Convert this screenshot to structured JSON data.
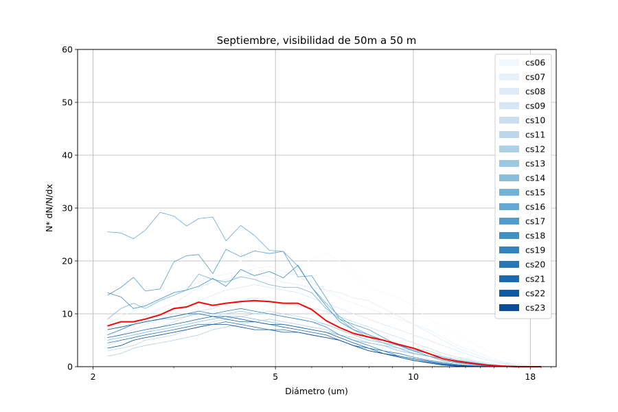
{
  "chart_data": {
    "type": "line",
    "title": "Septiembre, visibilidad de 50m a 50 m",
    "xlabel": "Diámetro (um)",
    "ylabel": "N* dN/N/dx",
    "x_scale": "log",
    "xlim": [
      1.85,
      20.5
    ],
    "ylim": [
      0,
      60
    ],
    "grid": true,
    "legend_position": "top-right",
    "xticks": [
      2,
      5,
      10,
      18
    ],
    "xtick_labels": [
      "2",
      "5",
      "10",
      "18"
    ],
    "yticks": [
      0,
      10,
      20,
      30,
      40,
      50,
      60
    ],
    "ytick_labels": [
      "0",
      "10",
      "20",
      "30",
      "40",
      "50",
      "60"
    ],
    "x": [
      2.15,
      2.3,
      2.45,
      2.6,
      2.8,
      3.0,
      3.2,
      3.4,
      3.65,
      3.9,
      4.2,
      4.5,
      4.85,
      5.2,
      5.6,
      6.0,
      6.45,
      6.9,
      7.4,
      8.0,
      8.6,
      9.3,
      10.0,
      10.8,
      11.6,
      12.5,
      13.5,
      14.5,
      15.6,
      16.8,
      18.0,
      19.0
    ],
    "series": [
      {
        "name": "cs06",
        "color": "#f2f8fd",
        "values": [
          9.0,
          10.0,
          11.0,
          12.0,
          13.5,
          14.5,
          16.0,
          17.0,
          18.5,
          19.5,
          20.0,
          19.0,
          18.0,
          17.5,
          18.5,
          20.5,
          21.5,
          20.0,
          17.5,
          15.0,
          14.0,
          13.0,
          11.5,
          9.0,
          7.5,
          6.0,
          4.5,
          3.0,
          1.8,
          0.8,
          0.2,
          0.0
        ]
      },
      {
        "name": "cs07",
        "color": "#e8f1fa",
        "values": [
          8.0,
          9.5,
          10.5,
          11.5,
          12.5,
          14.0,
          15.0,
          16.0,
          17.0,
          17.5,
          18.0,
          18.5,
          19.0,
          18.0,
          17.0,
          16.0,
          14.5,
          13.0,
          12.0,
          11.0,
          10.0,
          9.0,
          8.0,
          7.0,
          5.5,
          4.0,
          3.0,
          2.0,
          1.0,
          0.5,
          0.1,
          0.0
        ]
      },
      {
        "name": "cs08",
        "color": "#dfebf7",
        "values": [
          6.0,
          7.0,
          8.5,
          9.5,
          11.0,
          12.0,
          13.5,
          15.0,
          16.0,
          16.5,
          17.0,
          17.5,
          17.0,
          16.0,
          15.5,
          15.0,
          14.5,
          14.0,
          13.0,
          12.5,
          11.0,
          9.5,
          8.0,
          6.5,
          5.0,
          3.5,
          2.5,
          1.5,
          0.8,
          0.3,
          0.1,
          0.0
        ]
      },
      {
        "name": "cs09",
        "color": "#d6e6f4",
        "values": [
          5.0,
          6.0,
          7.0,
          8.0,
          9.0,
          10.0,
          11.5,
          12.5,
          13.5,
          14.5,
          15.0,
          15.5,
          15.0,
          14.5,
          14.0,
          13.0,
          12.0,
          11.0,
          10.0,
          9.0,
          8.0,
          7.0,
          6.0,
          5.0,
          4.0,
          3.0,
          2.0,
          1.2,
          0.6,
          0.2,
          0.0,
          0.0
        ]
      },
      {
        "name": "cs10",
        "color": "#cadef0",
        "values": [
          4.0,
          5.0,
          5.5,
          6.5,
          7.5,
          8.5,
          9.5,
          10.5,
          11.0,
          12.0,
          12.5,
          13.0,
          12.5,
          12.0,
          11.5,
          11.0,
          10.5,
          9.5,
          8.5,
          7.5,
          6.5,
          5.5,
          4.5,
          3.5,
          2.5,
          1.8,
          1.2,
          0.7,
          0.3,
          0.1,
          0.0,
          0.0
        ]
      },
      {
        "name": "cs11",
        "color": "#bcd7eb",
        "values": [
          3.0,
          3.5,
          4.0,
          5.0,
          5.5,
          6.0,
          7.0,
          7.5,
          8.5,
          9.0,
          9.5,
          10.0,
          10.5,
          10.0,
          9.5,
          9.0,
          8.0,
          7.0,
          6.0,
          5.0,
          4.5,
          4.0,
          3.5,
          3.0,
          2.0,
          1.5,
          1.0,
          0.5,
          0.2,
          0.1,
          0.0,
          0.0
        ]
      },
      {
        "name": "cs12",
        "color": "#abd0e6",
        "values": [
          2.0,
          2.5,
          3.5,
          4.0,
          4.5,
          5.0,
          5.5,
          6.0,
          7.0,
          7.5,
          8.0,
          8.5,
          9.0,
          8.5,
          8.0,
          7.5,
          7.0,
          6.0,
          5.5,
          4.5,
          4.0,
          3.5,
          3.0,
          2.0,
          1.5,
          1.0,
          0.6,
          0.3,
          0.1,
          0.0,
          0.0,
          0.0
        ]
      },
      {
        "name": "cs13",
        "color": "#9ac8e0",
        "values": [
          7.0,
          7.5,
          8.0,
          8.5,
          9.0,
          9.0,
          9.5,
          10.0,
          10.0,
          10.0,
          10.5,
          10.0,
          10.0,
          9.5,
          9.0,
          8.5,
          8.0,
          7.0,
          6.0,
          5.0,
          4.5,
          4.0,
          3.0,
          2.5,
          1.8,
          1.2,
          0.8,
          0.4,
          0.2,
          0.0,
          0.0,
          0.0
        ]
      },
      {
        "name": "cs14",
        "color": "#88bedc",
        "values": [
          5.0,
          5.5,
          6.0,
          6.5,
          7.0,
          7.5,
          8.0,
          8.5,
          9.0,
          9.5,
          9.5,
          9.0,
          8.5,
          8.0,
          7.5,
          7.0,
          6.5,
          6.0,
          5.0,
          4.5,
          4.0,
          3.0,
          2.5,
          2.0,
          1.5,
          1.0,
          0.5,
          0.2,
          0.1,
          0.0,
          0.0,
          0.0
        ]
      },
      {
        "name": "cs15",
        "color": "#74b3d8",
        "values": [
          9.0,
          11.0,
          12.0,
          11.0,
          12.5,
          13.5,
          14.5,
          17.5,
          16.5,
          16.0,
          17.0,
          16.5,
          15.5,
          15.0,
          15.0,
          14.0,
          11.0,
          9.0,
          7.0,
          5.5,
          4.5,
          3.5,
          2.5,
          2.0,
          1.5,
          1.0,
          0.5,
          0.3,
          0.1,
          0.0,
          0.0,
          0.0
        ]
      },
      {
        "name": "cs16",
        "color": "#62a8d3",
        "values": [
          25.5,
          25.3,
          24.2,
          25.8,
          29.2,
          28.5,
          26.6,
          28.0,
          28.3,
          23.8,
          26.7,
          24.8,
          22.0,
          21.8,
          19.0,
          15.0,
          12.0,
          9.5,
          7.5,
          6.0,
          5.0,
          4.0,
          3.2,
          2.5,
          1.8,
          1.2,
          0.8,
          0.4,
          0.2,
          0.1,
          0.0,
          0.0
        ]
      },
      {
        "name": "cs17",
        "color": "#519ccc",
        "values": [
          13.5,
          15.0,
          16.9,
          14.3,
          14.7,
          19.8,
          21.0,
          21.2,
          17.6,
          22.2,
          20.8,
          21.9,
          21.4,
          21.8,
          17.0,
          17.2,
          13.0,
          9.0,
          8.0,
          7.0,
          5.5,
          4.0,
          3.5,
          2.5,
          1.5,
          0.8,
          0.4,
          0.2,
          0.1,
          0.0,
          0.0,
          0.0
        ]
      },
      {
        "name": "cs18",
        "color": "#4190c5",
        "values": [
          14.0,
          13.2,
          11.0,
          11.5,
          12.8,
          14.0,
          14.5,
          15.2,
          16.7,
          15.2,
          18.4,
          17.2,
          18.0,
          16.8,
          19.2,
          15.0,
          11.5,
          8.5,
          7.0,
          6.0,
          5.0,
          4.0,
          3.0,
          2.0,
          1.2,
          0.7,
          0.4,
          0.2,
          0.1,
          0.0,
          0.0,
          0.0
        ]
      },
      {
        "name": "cs19",
        "color": "#3383be",
        "values": [
          6.0,
          7.0,
          8.0,
          8.5,
          9.0,
          9.5,
          10.0,
          10.5,
          10.0,
          10.5,
          11.0,
          10.5,
          10.0,
          9.5,
          9.0,
          8.5,
          7.5,
          6.0,
          5.0,
          4.0,
          3.0,
          2.5,
          1.8,
          1.2,
          0.8,
          0.4,
          0.2,
          0.1,
          0.0,
          0.0,
          0.0,
          0.0
        ]
      },
      {
        "name": "cs20",
        "color": "#2676b8",
        "values": [
          4.5,
          5.0,
          5.5,
          6.0,
          6.5,
          7.0,
          7.5,
          8.0,
          8.0,
          8.5,
          8.0,
          7.5,
          7.0,
          7.0,
          6.5,
          6.0,
          5.5,
          5.0,
          4.0,
          3.5,
          3.0,
          2.0,
          1.5,
          1.0,
          0.6,
          0.3,
          0.1,
          0.0,
          0.0,
          0.0,
          0.0,
          0.0
        ]
      },
      {
        "name": "cs21",
        "color": "#1b69af",
        "values": [
          5.5,
          6.0,
          6.5,
          7.0,
          7.5,
          8.0,
          8.5,
          9.0,
          9.5,
          9.0,
          8.5,
          8.5,
          8.0,
          7.5,
          7.0,
          6.5,
          6.0,
          5.0,
          4.0,
          3.0,
          2.5,
          1.8,
          1.2,
          0.8,
          0.4,
          0.2,
          0.1,
          0.0,
          0.0,
          0.0,
          0.0,
          0.0
        ]
      },
      {
        "name": "cs22",
        "color": "#0f5ba3",
        "values": [
          7.0,
          7.5,
          8.0,
          8.5,
          9.0,
          9.5,
          10.0,
          10.0,
          9.5,
          9.5,
          9.0,
          8.5,
          8.0,
          8.0,
          7.5,
          7.0,
          6.5,
          5.5,
          4.5,
          3.5,
          2.5,
          2.0,
          1.5,
          1.0,
          0.5,
          0.2,
          0.1,
          0.0,
          0.0,
          0.0,
          0.0,
          0.0
        ]
      },
      {
        "name": "cs23",
        "color": "#084d96",
        "values": [
          3.5,
          4.0,
          5.0,
          5.5,
          6.0,
          6.5,
          7.0,
          7.5,
          8.0,
          8.0,
          7.5,
          7.0,
          7.0,
          6.5,
          6.5,
          6.0,
          5.5,
          5.0,
          4.0,
          3.0,
          2.5,
          1.8,
          1.2,
          0.7,
          0.3,
          0.1,
          0.0,
          0.0,
          0.0,
          0.0,
          0.0,
          0.0
        ]
      }
    ],
    "mean_series": {
      "color": "#ff0000",
      "values": [
        7.7,
        8.5,
        8.5,
        9.0,
        9.8,
        11.0,
        11.3,
        12.2,
        11.6,
        12.0,
        12.3,
        12.5,
        12.3,
        12.0,
        12.0,
        10.8,
        8.7,
        7.4,
        6.3,
        5.6,
        5.0,
        4.2,
        3.5,
        2.5,
        1.5,
        1.0,
        0.6,
        0.3,
        0.1,
        0.0,
        0.0,
        0.0
      ]
    }
  }
}
